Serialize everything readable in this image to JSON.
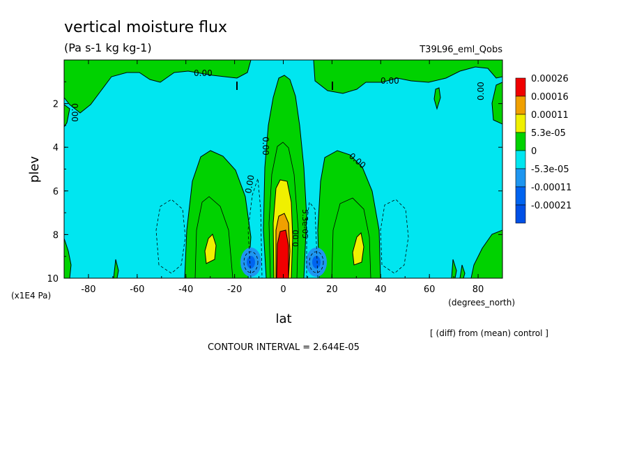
{
  "chart_data": {
    "type": "heatmap",
    "title": "vertical moisture flux",
    "subtitle": "(Pa s-1 kg kg-1)",
    "experiment": "T39L96_eml_Qobs",
    "xlabel": "lat",
    "xunits": "(degrees_north)",
    "ylabel": "plev",
    "yunits": "(x1E4 Pa)",
    "xlim": [
      -90,
      90
    ],
    "ylim": [
      10,
      0
    ],
    "xticks": [
      "-80",
      "-60",
      "-40",
      "-20",
      "0",
      "20",
      "40",
      "60",
      "80"
    ],
    "yticks": [
      "2",
      "4",
      "6",
      "8",
      "10"
    ],
    "contour_interval": "CONTOUR INTERVAL = 2.644E-05",
    "footnote": "[ (diff) from (mean) control ]",
    "legend": [
      {
        "label": "0.00026",
        "color": "#f00000"
      },
      {
        "label": "0.00016",
        "color": "#f0a000"
      },
      {
        "label": "0.00011",
        "color": "#f0f000"
      },
      {
        "label": "5.3e-05",
        "color": "#00d200"
      },
      {
        "label": "0",
        "color": "#00e6f0"
      },
      {
        "label": "-5.3e-05",
        "color": "#1e96f0"
      },
      {
        "label": "-0.00011",
        "color": "#0064f0"
      },
      {
        "label": "-0.00021",
        "color": "#0050e6"
      }
    ],
    "contour_labels": [
      "0.00",
      "0.00",
      "0.00",
      "0.00",
      "0.00",
      "0.00",
      "0.00",
      "0.00",
      "0.00",
      "0.00",
      "5.3e-05"
    ],
    "features": [
      {
        "name": "equatorial-updraft",
        "lat": 0,
        "plev": 8.8,
        "value": "0.00026"
      },
      {
        "name": "south-subtropical-max",
        "lat": -30,
        "plev": 8.8,
        "value": "5.3e-05"
      },
      {
        "name": "north-subtropical-max",
        "lat": 30,
        "plev": 8.8,
        "value": "5.3e-05"
      },
      {
        "name": "south-downdraft",
        "lat": -14,
        "plev": 9.3,
        "value": "-0.00011"
      },
      {
        "name": "north-downdraft",
        "lat": 13,
        "plev": 9.3,
        "value": "-0.00011"
      }
    ]
  }
}
